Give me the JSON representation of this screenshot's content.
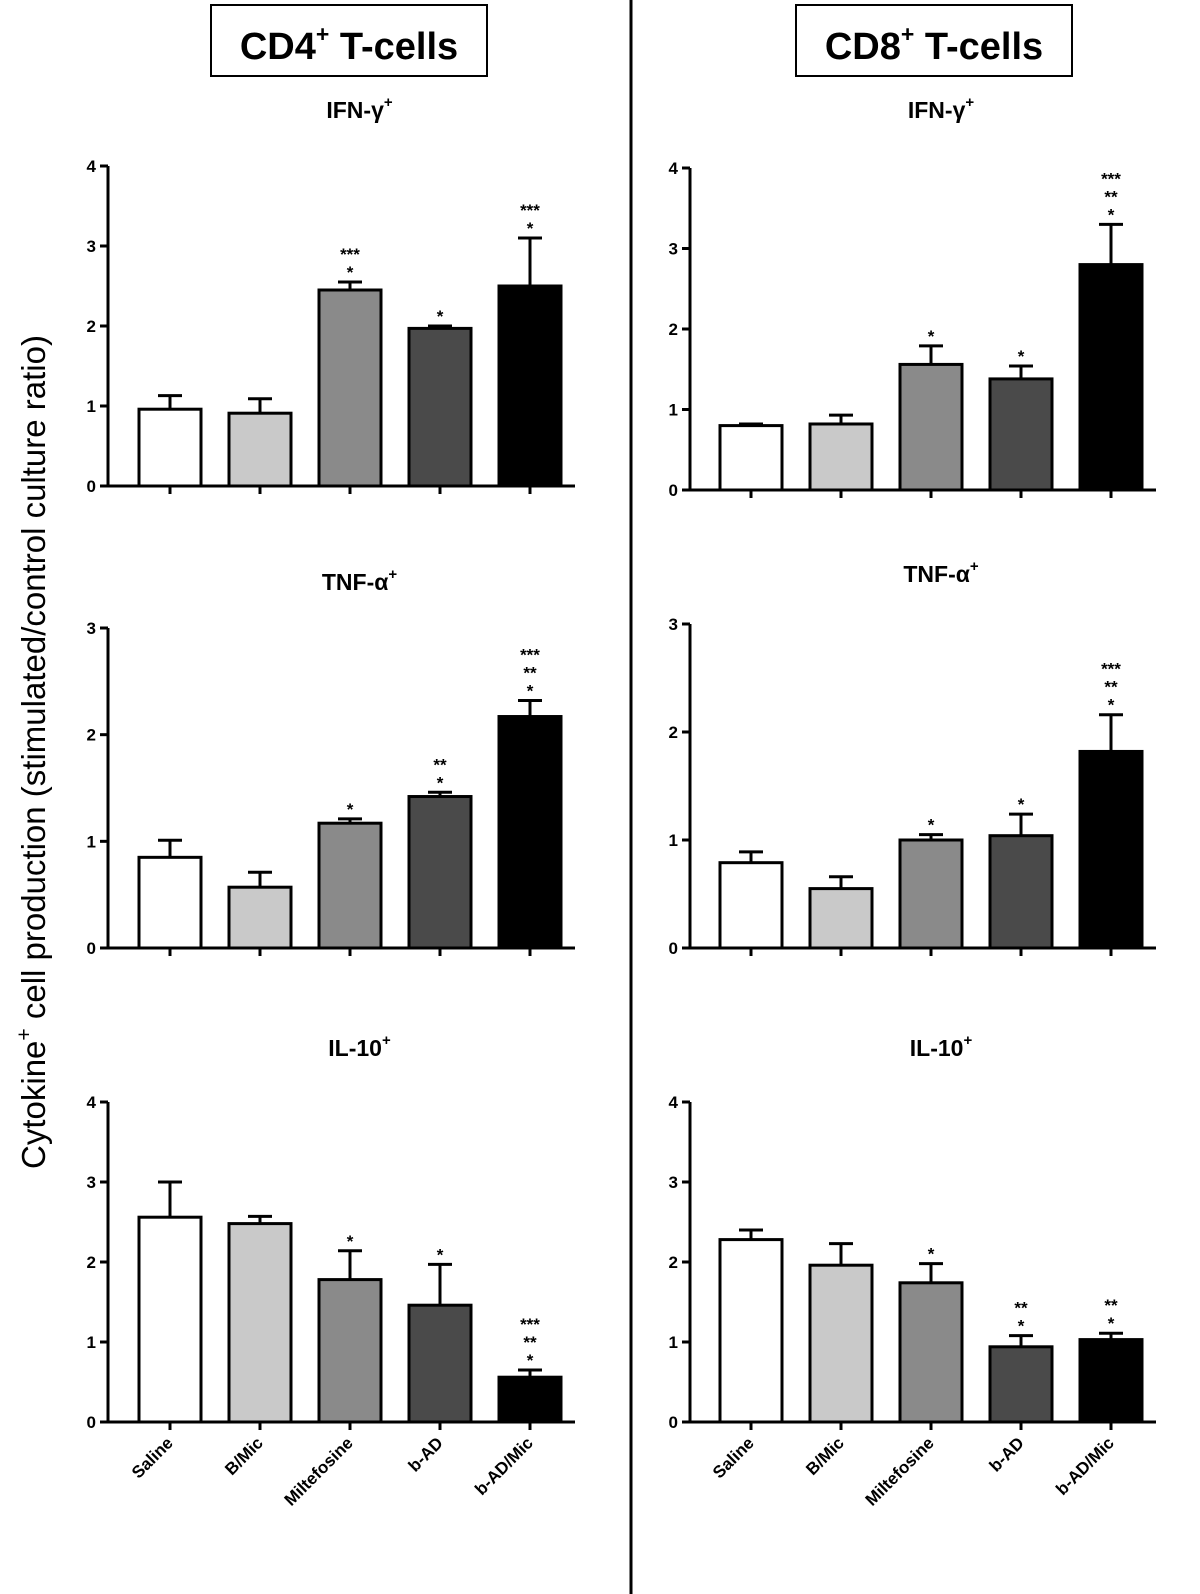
{
  "figure": {
    "ylabel_main": "Cytokine",
    "ylabel_sup": "+",
    "ylabel_rest": " cell production (stimulated/control culture ratio)"
  },
  "columns": [
    {
      "title_main": "CD4",
      "title_sup": "+",
      "title_rest": " T-cells"
    },
    {
      "title_main": "CD8",
      "title_sup": "+",
      "title_rest": " T-cells"
    }
  ],
  "colors": {
    "Saline": "#ffffff",
    "B/Mic": "#c9c9c9",
    "Miltefosine": "#8a8a8a",
    "b-AD": "#4a4a4a",
    "b-AD/Mic": "#000000",
    "stroke": "#000000"
  },
  "chart_data": [
    {
      "type": "bar",
      "panel": "CD4 IFN-γ+",
      "title_main": "IFN-γ",
      "title_sup": "+",
      "categories": [
        "Saline",
        "B/Mic",
        "Miltefosine",
        "b-AD",
        "b-AD/Mic"
      ],
      "values": [
        0.96,
        0.91,
        2.45,
        1.97,
        2.5
      ],
      "errors": [
        0.17,
        0.18,
        0.1,
        0.03,
        0.6
      ],
      "significance": [
        "",
        "",
        "***\n*",
        "*",
        "***\n*"
      ],
      "ylim": [
        0,
        4
      ],
      "yticks": [
        0,
        1,
        2,
        3,
        4
      ]
    },
    {
      "type": "bar",
      "panel": "CD8 IFN-γ+",
      "title_main": "IFN-γ",
      "title_sup": "+",
      "categories": [
        "Saline",
        "B/Mic",
        "Miltefosine",
        "b-AD",
        "b-AD/Mic"
      ],
      "values": [
        0.8,
        0.82,
        1.56,
        1.38,
        2.8
      ],
      "errors": [
        0.02,
        0.11,
        0.23,
        0.16,
        0.5
      ],
      "significance": [
        "",
        "",
        "*",
        "*",
        "***\n**\n*"
      ],
      "ylim": [
        0,
        4
      ],
      "yticks": [
        0,
        1,
        2,
        3,
        4
      ]
    },
    {
      "type": "bar",
      "panel": "CD4 TNF-α+",
      "title_main": "TNF-α",
      "title_sup": "+",
      "categories": [
        "Saline",
        "B/Mic",
        "Miltefosine",
        "b-AD",
        "b-AD/Mic"
      ],
      "values": [
        0.85,
        0.57,
        1.17,
        1.42,
        2.17
      ],
      "errors": [
        0.16,
        0.14,
        0.04,
        0.04,
        0.15
      ],
      "significance": [
        "",
        "",
        "*",
        "**\n*",
        "***\n**\n*"
      ],
      "ylim": [
        0,
        3
      ],
      "yticks": [
        0,
        1,
        2,
        3
      ]
    },
    {
      "type": "bar",
      "panel": "CD8 TNF-α+",
      "title_main": "TNF-α",
      "title_sup": "+",
      "categories": [
        "Saline",
        "B/Mic",
        "Miltefosine",
        "b-AD",
        "b-AD/Mic"
      ],
      "values": [
        0.79,
        0.55,
        1.0,
        1.04,
        1.82
      ],
      "errors": [
        0.1,
        0.11,
        0.05,
        0.2,
        0.34
      ],
      "significance": [
        "",
        "",
        "*",
        "*",
        "***\n**\n*"
      ],
      "ylim": [
        0,
        3
      ],
      "yticks": [
        0,
        1,
        2,
        3
      ]
    },
    {
      "type": "bar",
      "panel": "CD4 IL-10+",
      "title_main": "IL-10",
      "title_sup": "+",
      "categories": [
        "Saline",
        "B/Mic",
        "Miltefosine",
        "b-AD",
        "b-AD/Mic"
      ],
      "values": [
        2.56,
        2.48,
        1.78,
        1.46,
        0.56
      ],
      "errors": [
        0.44,
        0.09,
        0.36,
        0.51,
        0.09
      ],
      "significance": [
        "",
        "",
        "*",
        "*",
        "***\n**\n*"
      ],
      "ylim": [
        0,
        4
      ],
      "yticks": [
        0,
        1,
        2,
        3,
        4
      ]
    },
    {
      "type": "bar",
      "panel": "CD8 IL-10+",
      "title_main": "IL-10",
      "title_sup": "+",
      "categories": [
        "Saline",
        "B/Mic",
        "Miltefosine",
        "b-AD",
        "b-AD/Mic"
      ],
      "values": [
        2.28,
        1.96,
        1.74,
        0.94,
        1.03
      ],
      "errors": [
        0.12,
        0.27,
        0.24,
        0.14,
        0.08
      ],
      "significance": [
        "",
        "",
        "*",
        "**\n*",
        "**\n*"
      ],
      "ylim": [
        0,
        4
      ],
      "yticks": [
        0,
        1,
        2,
        3,
        4
      ]
    }
  ]
}
